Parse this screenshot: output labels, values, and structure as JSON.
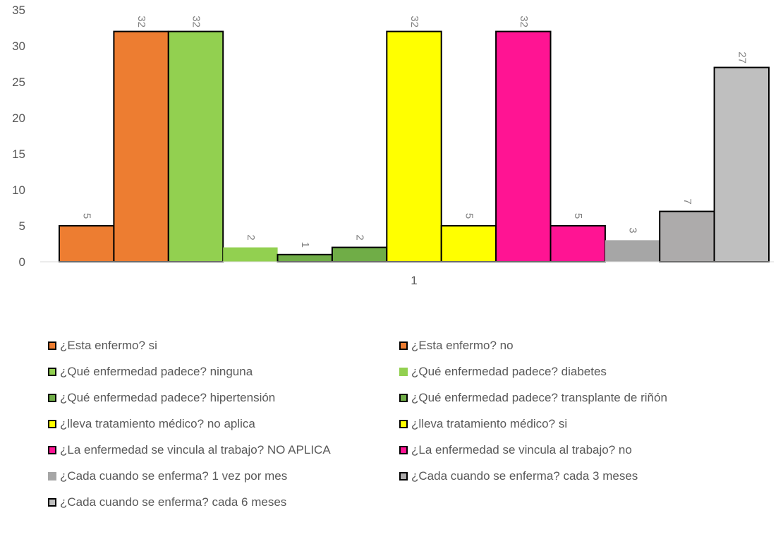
{
  "chart_data": {
    "type": "bar",
    "categories": [
      "1"
    ],
    "ylim": [
      0,
      35
    ],
    "yticks": [
      0,
      5,
      10,
      15,
      20,
      25,
      30,
      35
    ],
    "grid": false,
    "legend_position": "bottom",
    "series": [
      {
        "name": "¿Esta enfermo? si",
        "values": [
          5
        ],
        "color": "#ED7D31",
        "outlined": true
      },
      {
        "name": "¿Esta enfermo? no",
        "values": [
          32
        ],
        "color": "#ED7D31",
        "outlined": true
      },
      {
        "name": "¿Qué enfermedad padece? ninguna",
        "values": [
          32
        ],
        "color": "#92D050",
        "outlined": true
      },
      {
        "name": "¿Qué enfermedad padece? diabetes",
        "values": [
          2
        ],
        "color": "#92D050",
        "outlined": false
      },
      {
        "name": "¿Qué enfermedad padece? hipertensión",
        "values": [
          1
        ],
        "color": "#70AD47",
        "outlined": true
      },
      {
        "name": "¿Qué enfermedad padece? transplante de riñón",
        "values": [
          2
        ],
        "color": "#70AD47",
        "outlined": true
      },
      {
        "name": "¿lleva tratamiento médico? no aplica",
        "values": [
          32
        ],
        "color": "#FFFF00",
        "outlined": true
      },
      {
        "name": "¿lleva tratamiento médico? si",
        "values": [
          5
        ],
        "color": "#FFFF00",
        "outlined": true
      },
      {
        "name": "¿La enfermedad se vincula al trabajo? NO APLICA",
        "values": [
          32
        ],
        "color": "#FF1493",
        "outlined": true
      },
      {
        "name": "¿La enfermedad se vincula al trabajo? no",
        "values": [
          5
        ],
        "color": "#FF1493",
        "outlined": true
      },
      {
        "name": "¿Cada cuando se enferma? 1 vez por mes",
        "values": [
          3
        ],
        "color": "#A6A6A6",
        "outlined": false
      },
      {
        "name": "¿Cada cuando se enferma? cada 3 meses",
        "values": [
          7
        ],
        "color": "#ADABAB",
        "outlined": true
      },
      {
        "name": "¿Cada cuando se enferma? cada 6 meses",
        "values": [
          27
        ],
        "color": "#BFBFBF",
        "outlined": true
      }
    ]
  }
}
